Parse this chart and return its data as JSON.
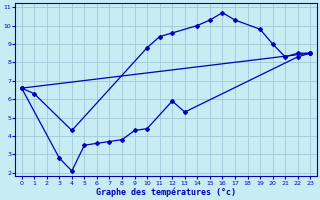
{
  "title": "Graphe des températures (°c)",
  "bg_color": "#c8ecf4",
  "grid_color": "#a0c8d8",
  "line_color": "#0000bb",
  "xlim": [
    -0.5,
    23.5
  ],
  "ylim": [
    1.8,
    11.2
  ],
  "xticks": [
    0,
    1,
    2,
    3,
    4,
    5,
    6,
    7,
    8,
    9,
    10,
    11,
    12,
    13,
    14,
    15,
    16,
    17,
    18,
    19,
    20,
    21,
    22,
    23
  ],
  "yticks": [
    2,
    3,
    4,
    5,
    6,
    7,
    8,
    9,
    10,
    11
  ],
  "curve_top": {
    "x": [
      0,
      1,
      4,
      10,
      11,
      12,
      14,
      15,
      16,
      17,
      19,
      20,
      21,
      22,
      23
    ],
    "y": [
      6.6,
      6.3,
      4.3,
      8.8,
      9.4,
      9.6,
      10.0,
      10.3,
      10.7,
      10.3,
      9.8,
      9.0,
      8.3,
      8.5,
      8.5
    ]
  },
  "curve_mean": {
    "x": [
      0,
      23
    ],
    "y": [
      6.6,
      8.5
    ]
  },
  "curve_min": {
    "x": [
      0,
      3,
      4,
      5,
      6,
      7,
      8,
      9,
      10,
      12,
      13,
      22,
      23
    ],
    "y": [
      6.6,
      2.8,
      2.1,
      3.5,
      3.6,
      3.7,
      3.8,
      4.3,
      4.4,
      5.9,
      5.3,
      8.3,
      8.5
    ]
  }
}
